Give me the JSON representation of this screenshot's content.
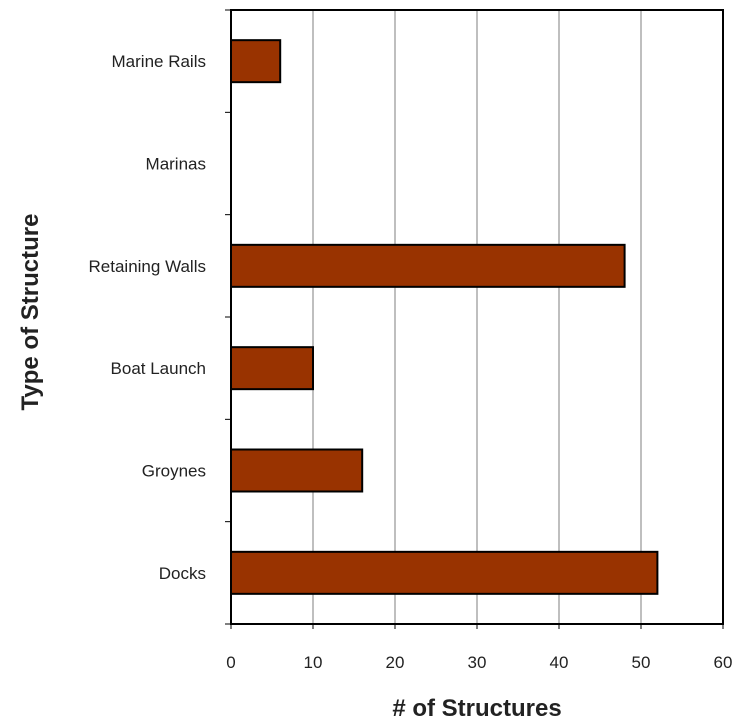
{
  "chart_data": {
    "type": "bar",
    "orientation": "horizontal",
    "title": "",
    "xlabel": "# of Structures",
    "ylabel": "Type of Structure",
    "categories": [
      "Marine Rails",
      "Marinas",
      "Retaining Walls",
      "Boat Launch",
      "Groynes",
      "Docks"
    ],
    "values": [
      6,
      0,
      48,
      10,
      16,
      52
    ],
    "xlim": [
      0,
      60
    ],
    "xticks": [
      "0",
      "10",
      "20",
      "30",
      "40",
      "50",
      "60"
    ],
    "grid": "vertical",
    "legend": "none",
    "bar_color": "#993300",
    "bar_edge_color": "#000000"
  }
}
